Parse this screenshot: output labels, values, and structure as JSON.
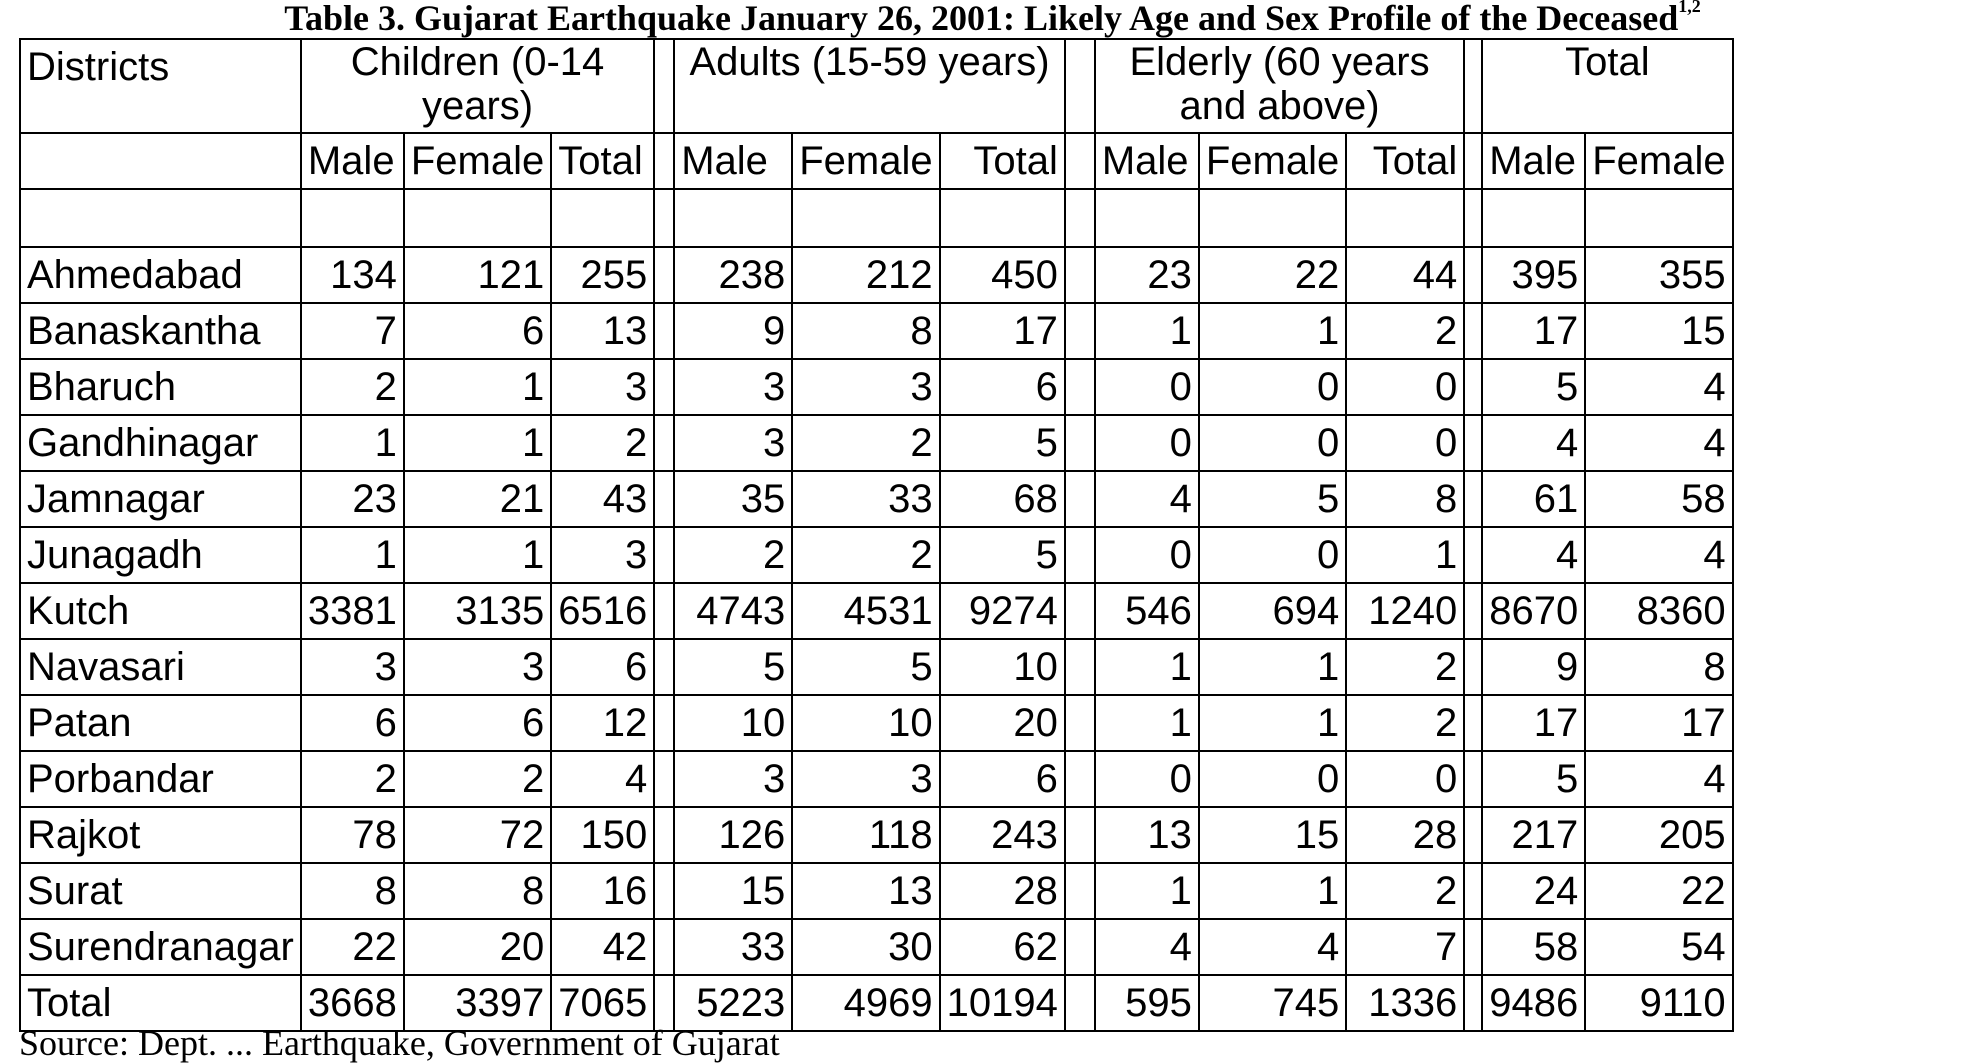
{
  "title": "Table 3. Gujarat Earthquake January 26, 2001: Likely Age and Sex Profile of the Deceased",
  "title_sup": "1,2",
  "headers": {
    "districts": "Districts",
    "children": "Children (0-14 years)",
    "adults": "Adults (15-59 years)",
    "elderly": "Elderly (60 years and above)",
    "total": "Total"
  },
  "subheaders": {
    "children": [
      "Male",
      "Female",
      "Total"
    ],
    "adults": [
      "Male",
      "Female",
      "Total"
    ],
    "elderly": [
      "Male",
      "Female",
      "Total"
    ],
    "total": [
      "Male",
      "Female"
    ]
  },
  "rows": [
    {
      "district": "Ahmedabad",
      "values": [
        "134",
        "121",
        "255",
        "238",
        "212",
        "450",
        "23",
        "22",
        "44",
        "395",
        "355"
      ]
    },
    {
      "district": "Banaskantha",
      "values": [
        "7",
        "6",
        "13",
        "9",
        "8",
        "17",
        "1",
        "1",
        "2",
        "17",
        "15"
      ]
    },
    {
      "district": "Bharuch",
      "values": [
        "2",
        "1",
        "3",
        "3",
        "3",
        "6",
        "0",
        "0",
        "0",
        "5",
        "4"
      ]
    },
    {
      "district": "Gandhinagar",
      "values": [
        "1",
        "1",
        "2",
        "3",
        "2",
        "5",
        "0",
        "0",
        "0",
        "4",
        "4"
      ]
    },
    {
      "district": "Jamnagar",
      "values": [
        "23",
        "21",
        "43",
        "35",
        "33",
        "68",
        "4",
        "5",
        "8",
        "61",
        "58"
      ]
    },
    {
      "district": "Junagadh",
      "values": [
        "1",
        "1",
        "3",
        "2",
        "2",
        "5",
        "0",
        "0",
        "1",
        "4",
        "4"
      ]
    },
    {
      "district": "Kutch",
      "values": [
        "3381",
        "3135",
        "6516",
        "4743",
        "4531",
        "9274",
        "546",
        "694",
        "1240",
        "8670",
        "8360"
      ]
    },
    {
      "district": "Navasari",
      "values": [
        "3",
        "3",
        "6",
        "5",
        "5",
        "10",
        "1",
        "1",
        "2",
        "9",
        "8"
      ]
    },
    {
      "district": "Patan",
      "values": [
        "6",
        "6",
        "12",
        "10",
        "10",
        "20",
        "1",
        "1",
        "2",
        "17",
        "17"
      ]
    },
    {
      "district": "Porbandar",
      "values": [
        "2",
        "2",
        "4",
        "3",
        "3",
        "6",
        "0",
        "0",
        "0",
        "5",
        "4"
      ]
    },
    {
      "district": "Rajkot",
      "values": [
        "78",
        "72",
        "150",
        "126",
        "118",
        "243",
        "13",
        "15",
        "28",
        "217",
        "205"
      ]
    },
    {
      "district": "Surat",
      "values": [
        "8",
        "8",
        "16",
        "15",
        "13",
        "28",
        "1",
        "1",
        "2",
        "24",
        "22"
      ]
    },
    {
      "district": "Surendranagar",
      "values": [
        "22",
        "20",
        "42",
        "33",
        "30",
        "62",
        "4",
        "4",
        "7",
        "58",
        "54"
      ]
    },
    {
      "district": "Total",
      "values": [
        "3668",
        "3397",
        "7065",
        "5223",
        "4969",
        "10194",
        "595",
        "745",
        "1336",
        "9486",
        "9110"
      ]
    }
  ],
  "source": "Source: Dept. ... Earthquake, Government of Gujarat"
}
